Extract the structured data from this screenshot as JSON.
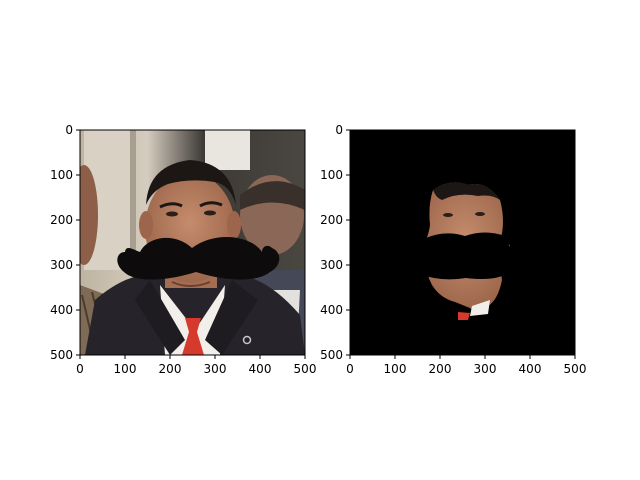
{
  "figure": {
    "background": "#ffffff",
    "axis_color": "#000000"
  },
  "chart_data": [
    {
      "type": "image",
      "content": "photo of a man in a dark suit with a red tie and a large black mustache overlaid on his face",
      "xlim": [
        0,
        500
      ],
      "ylim": [
        500,
        0
      ],
      "xticks": [
        0,
        100,
        200,
        300,
        400,
        500
      ],
      "yticks": [
        0,
        100,
        200,
        300,
        400,
        500
      ],
      "xticklabels": [
        "0",
        "100",
        "200",
        "300",
        "400",
        "500"
      ],
      "yticklabels": [
        "0",
        "100",
        "200",
        "300",
        "400",
        "500"
      ],
      "grid": false,
      "colors": {
        "background_wall": "#c9bfae",
        "suit": "#26232a",
        "shirt": "#f2eeea",
        "tie": "#d63a2d",
        "skin": "#b27a5e",
        "hair": "#1c1615",
        "mustache": "#0d0b0b"
      }
    },
    {
      "type": "image",
      "content": "segmentation mask: face region visible on a black background with the mustache area blacked out",
      "xlim": [
        0,
        500
      ],
      "ylim": [
        500,
        0
      ],
      "xticks": [
        0,
        100,
        200,
        300,
        400,
        500
      ],
      "yticks": [
        0,
        100,
        200,
        300,
        400,
        500
      ],
      "xticklabels": [
        "0",
        "100",
        "200",
        "300",
        "400",
        "500"
      ],
      "yticklabels": [
        "0",
        "100",
        "200",
        "300",
        "400",
        "500"
      ],
      "grid": false,
      "colors": {
        "background": "#000000",
        "skin": "#b27a5e",
        "hair": "#1c1615",
        "tie": "#d63a2d",
        "shirt": "#f2eeea"
      }
    }
  ]
}
